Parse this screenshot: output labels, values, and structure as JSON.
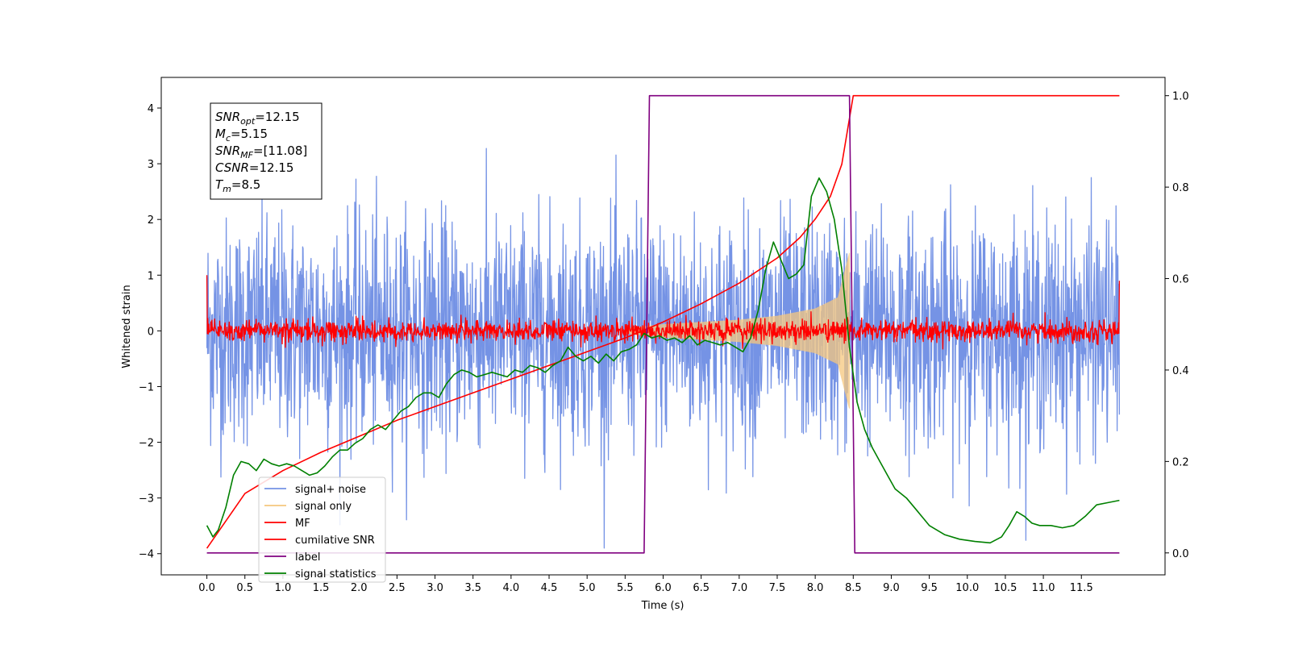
{
  "chart_data": {
    "type": "line",
    "xlabel": "Time (s)",
    "ylabel": "Whitened strain",
    "xlim": [
      -0.6,
      12.6
    ],
    "ylim": [
      -4.38,
      4.55
    ],
    "y2lim": [
      -0.048,
      1.04
    ],
    "x_ticks": [
      "0.0",
      "0.5",
      "1.0",
      "1.5",
      "2.0",
      "2.5",
      "3.0",
      "3.5",
      "4.0",
      "4.5",
      "5.0",
      "5.5",
      "6.0",
      "6.5",
      "7.0",
      "7.5",
      "8.0",
      "8.5",
      "9.0",
      "9.5",
      "10.0",
      "10.5",
      "11.0",
      "11.5"
    ],
    "y_ticks": [
      "−4",
      "−3",
      "−2",
      "−1",
      "0",
      "1",
      "2",
      "3",
      "4"
    ],
    "y2_ticks": [
      "0.0",
      "0.2",
      "0.4",
      "0.6",
      "0.8",
      "1.0"
    ],
    "legend_position": "lower-left",
    "annotation": {
      "lines": [
        {
          "var": "SNR",
          "sub": "opt",
          "value": "=12.15"
        },
        {
          "var": "M",
          "sub": "c",
          "value": "=5.15"
        },
        {
          "var": "SNR",
          "sub": "MF",
          "value": "=[11.08]"
        },
        {
          "var": "CSNR",
          "sub": "",
          "value": "=12.15"
        },
        {
          "var": "T",
          "sub": "m",
          "value": "=8.5"
        }
      ]
    },
    "series": [
      {
        "name": "signal+ noise",
        "color": "#7593e5",
        "axis": "left",
        "kind": "noise",
        "x_range": [
          0,
          12
        ],
        "amplitude": 1.0,
        "peak_max": 4.1,
        "peak_min": -3.9
      },
      {
        "name": "signal only",
        "color": "#f5c77e",
        "axis": "left",
        "kind": "chirp",
        "x_range": [
          5.5,
          8.5
        ],
        "envelope": [
          [
            5.5,
            0.05
          ],
          [
            6.0,
            0.12
          ],
          [
            6.5,
            0.16
          ],
          [
            7.0,
            0.2
          ],
          [
            7.5,
            0.27
          ],
          [
            8.0,
            0.4
          ],
          [
            8.3,
            0.6
          ],
          [
            8.45,
            1.4
          ]
        ]
      },
      {
        "name": "MF",
        "color": "#ff0000",
        "axis": "left",
        "kind": "noise",
        "x_range": [
          0,
          12
        ],
        "amplitude": 0.1,
        "end_values": [
          1.0,
          0.9
        ]
      },
      {
        "name": "cumilative SNR",
        "color": "#ff0000",
        "axis": "right",
        "kind": "line",
        "x": [
          0,
          0.5,
          1,
          1.5,
          2,
          2.5,
          3,
          3.5,
          4,
          4.5,
          5,
          5.5,
          6,
          6.5,
          7,
          7.5,
          7.8,
          8.0,
          8.2,
          8.35,
          8.5,
          12
        ],
        "y": [
          0.01,
          0.13,
          0.18,
          0.22,
          0.255,
          0.29,
          0.32,
          0.35,
          0.38,
          0.41,
          0.44,
          0.47,
          0.505,
          0.545,
          0.59,
          0.645,
          0.69,
          0.73,
          0.78,
          0.85,
          1.0,
          1.0
        ]
      },
      {
        "name": "label",
        "color": "#800080",
        "axis": "right",
        "kind": "line",
        "x": [
          0,
          5.75,
          5.82,
          8.45,
          8.52,
          12
        ],
        "y": [
          0,
          0,
          1,
          1,
          0,
          0
        ]
      },
      {
        "name": "signal statistics",
        "color": "#008000",
        "axis": "right",
        "kind": "line",
        "x": [
          0,
          0.08,
          0.15,
          0.25,
          0.35,
          0.45,
          0.55,
          0.65,
          0.75,
          0.85,
          0.95,
          1.05,
          1.15,
          1.25,
          1.35,
          1.45,
          1.55,
          1.65,
          1.75,
          1.85,
          1.95,
          2.05,
          2.15,
          2.25,
          2.35,
          2.45,
          2.55,
          2.65,
          2.75,
          2.85,
          2.95,
          3.05,
          3.15,
          3.25,
          3.35,
          3.45,
          3.55,
          3.65,
          3.75,
          3.85,
          3.95,
          4.05,
          4.15,
          4.25,
          4.35,
          4.45,
          4.55,
          4.65,
          4.75,
          4.85,
          4.95,
          5.05,
          5.15,
          5.25,
          5.35,
          5.45,
          5.55,
          5.65,
          5.75,
          5.85,
          5.95,
          6.05,
          6.15,
          6.25,
          6.35,
          6.45,
          6.55,
          6.65,
          6.75,
          6.85,
          6.95,
          7.05,
          7.15,
          7.25,
          7.35,
          7.45,
          7.55,
          7.65,
          7.75,
          7.85,
          7.95,
          8.05,
          8.15,
          8.25,
          8.35,
          8.45,
          8.55,
          8.65,
          8.75,
          8.85,
          8.95,
          9.05,
          9.2,
          9.35,
          9.5,
          9.7,
          9.9,
          10.1,
          10.3,
          10.45,
          10.55,
          10.65,
          10.75,
          10.85,
          10.95,
          11.1,
          11.25,
          11.4,
          11.55,
          11.7,
          11.85,
          12.0
        ],
        "y": [
          0.06,
          0.035,
          0.05,
          0.1,
          0.17,
          0.2,
          0.195,
          0.18,
          0.205,
          0.195,
          0.19,
          0.195,
          0.19,
          0.18,
          0.17,
          0.175,
          0.19,
          0.21,
          0.225,
          0.225,
          0.24,
          0.25,
          0.27,
          0.28,
          0.27,
          0.29,
          0.31,
          0.32,
          0.34,
          0.35,
          0.35,
          0.34,
          0.37,
          0.39,
          0.4,
          0.395,
          0.385,
          0.39,
          0.395,
          0.39,
          0.385,
          0.4,
          0.395,
          0.41,
          0.405,
          0.395,
          0.41,
          0.42,
          0.45,
          0.43,
          0.42,
          0.43,
          0.415,
          0.435,
          0.42,
          0.44,
          0.445,
          0.455,
          0.48,
          0.47,
          0.475,
          0.465,
          0.47,
          0.46,
          0.475,
          0.455,
          0.465,
          0.46,
          0.455,
          0.46,
          0.45,
          0.44,
          0.47,
          0.53,
          0.62,
          0.68,
          0.64,
          0.6,
          0.61,
          0.63,
          0.78,
          0.82,
          0.79,
          0.73,
          0.62,
          0.45,
          0.33,
          0.27,
          0.23,
          0.2,
          0.17,
          0.14,
          0.12,
          0.09,
          0.06,
          0.04,
          0.03,
          0.025,
          0.022,
          0.035,
          0.06,
          0.09,
          0.08,
          0.065,
          0.06,
          0.06,
          0.055,
          0.06,
          0.08,
          0.105,
          0.11,
          0.115
        ]
      }
    ]
  }
}
